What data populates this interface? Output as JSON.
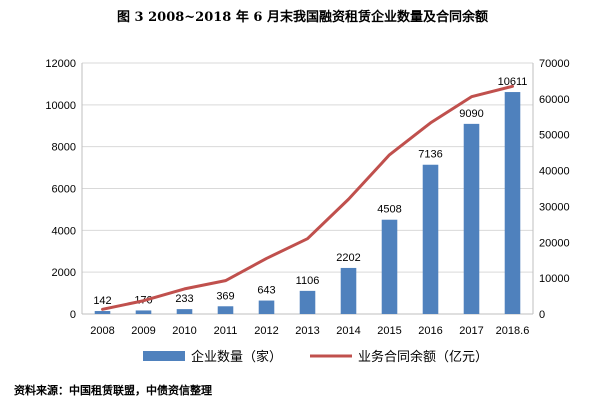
{
  "title": "图 3 2008~2018 年 6 月末我国融资租赁企业数量及合同余额",
  "source": "资料来源：中国租赁联盟，中债资信整理",
  "colors": {
    "bar": "#4F81BD",
    "line": "#C0504D",
    "grid": "#D9D9D9",
    "axis": "#BFBFBF",
    "text": "#000000"
  },
  "chart_data": {
    "type": "bar",
    "categories": [
      "2008",
      "2009",
      "2010",
      "2011",
      "2012",
      "2013",
      "2014",
      "2015",
      "2016",
      "2017",
      "2018.6"
    ],
    "series": [
      {
        "name": "企业数量（家）",
        "type": "bar",
        "axis": "left",
        "values": [
          142,
          170,
          233,
          369,
          643,
          1106,
          2202,
          4508,
          7136,
          9090,
          10611
        ]
      },
      {
        "name": "业务合同余额（亿元）",
        "type": "line",
        "axis": "right",
        "values": [
          1300,
          3700,
          7000,
          9300,
          15500,
          21000,
          32000,
          44400,
          53300,
          60600,
          63500
        ]
      }
    ],
    "y_left": {
      "lim": [
        0,
        12000
      ],
      "ticks": [
        0,
        2000,
        4000,
        6000,
        8000,
        10000,
        12000
      ]
    },
    "y_right": {
      "lim": [
        0,
        70000
      ],
      "ticks": [
        0,
        10000,
        20000,
        30000,
        40000,
        50000,
        60000,
        70000
      ]
    },
    "data_labels": [
      "142",
      "170",
      "233",
      "369",
      "643",
      "1106",
      "2202",
      "4508",
      "7136",
      "9090",
      "10611"
    ],
    "grid": true,
    "legend": "bottom"
  }
}
